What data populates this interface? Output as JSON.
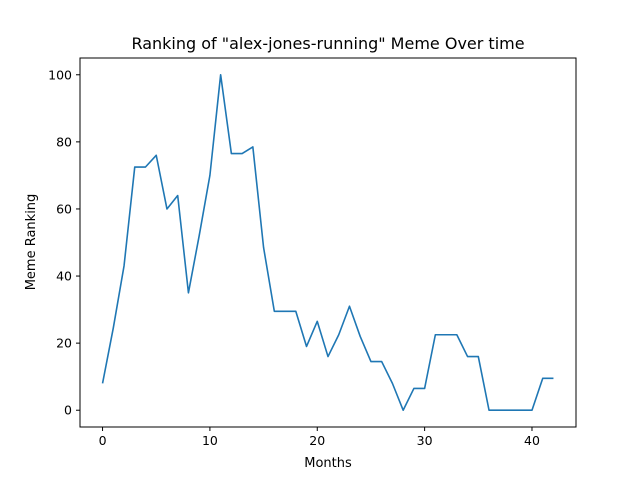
{
  "chart_data": {
    "type": "line",
    "title": "Ranking of \"alex-jones-running\" Meme Over time",
    "xlabel": "Months",
    "ylabel": "Meme Ranking",
    "xlim": [
      -2.1,
      44.1
    ],
    "ylim": [
      -5,
      105
    ],
    "xticks": [
      0,
      10,
      20,
      30,
      40
    ],
    "yticks": [
      0,
      20,
      40,
      60,
      80,
      100
    ],
    "grid": false,
    "line_color": "#1f77b4",
    "series": [
      {
        "x": [
          0,
          1,
          2,
          3,
          4,
          5,
          6,
          7,
          8,
          9,
          10,
          11,
          12,
          13,
          14,
          15,
          16,
          17,
          18,
          19,
          20,
          21,
          22,
          23,
          24,
          25,
          26,
          27,
          28,
          29,
          30,
          31,
          32,
          33,
          34,
          35,
          36,
          37,
          38,
          39,
          40,
          41,
          42
        ],
        "values": [
          8,
          24.5,
          43,
          72.5,
          72.5,
          76,
          60,
          64,
          35,
          52,
          70,
          100,
          76.5,
          76.5,
          78.5,
          48.5,
          29.5,
          29.5,
          29.5,
          19,
          26.5,
          16,
          22.5,
          31,
          22,
          14.5,
          14.5,
          8,
          0,
          6.5,
          6.5,
          22.5,
          22.5,
          22.5,
          16,
          16,
          0,
          0,
          0,
          0,
          0,
          9.5,
          9.5
        ]
      }
    ]
  }
}
